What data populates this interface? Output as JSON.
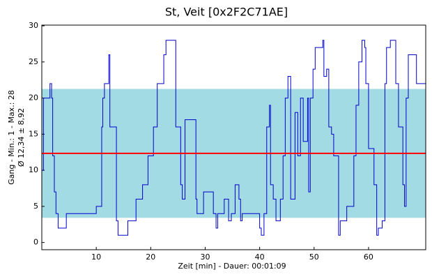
{
  "chart_data": {
    "type": "line",
    "step": true,
    "title": "St, Veit [0x2F2C71AE]",
    "x_label": "Zeit [min] - Dauer: 00:01:09",
    "y_label": [
      "Gang - Min.: 1 - Max.: 28",
      "Ø 12,34 ± 8,92"
    ],
    "xlim": [
      0,
      70.5
    ],
    "ylim": [
      -1,
      30.1
    ],
    "xticks": [
      10,
      20,
      30,
      40,
      50,
      60
    ],
    "yticks": [
      0,
      5,
      10,
      15,
      20,
      25,
      30
    ],
    "color": "#0000cc",
    "mean_color": "#ff0000",
    "band_color": "#a3dbe4",
    "mean": 12.34,
    "band": [
      3.42,
      21.26
    ],
    "x": [
      0,
      0.3,
      1.5,
      1.8,
      2,
      2.3,
      2.6,
      3,
      4.5,
      10,
      11,
      11.2,
      11.5,
      12.3,
      12.5,
      13.7,
      14,
      15.8,
      17.3,
      18.5,
      19.5,
      20.5,
      21.2,
      22.4,
      22.8,
      24.6,
      25.5,
      25.8,
      26.3,
      28.3,
      28.5,
      29.7,
      31.5,
      32,
      32.3,
      33.5,
      34.3,
      34.8,
      35.5,
      36.2,
      36.5,
      36.8,
      40,
      40.3,
      40.8,
      41.3,
      41.8,
      42,
      42.5,
      43,
      43.8,
      44.3,
      44.7,
      45.2,
      45.7,
      46.5,
      47,
      47.5,
      48,
      48.8,
      49,
      49.3,
      49.8,
      50.2,
      51.6,
      51.8,
      52.3,
      52.7,
      53.2,
      53.6,
      54.5,
      54.8,
      56,
      57.3,
      57.7,
      58.2,
      58.8,
      59.3,
      59.5,
      60,
      61,
      61.5,
      61.8,
      62.5,
      63,
      63.3,
      64,
      65,
      65.5,
      66.3,
      66.6,
      66.9,
      67.3,
      68.8,
      70.5
    ],
    "values": [
      10,
      20,
      22,
      20,
      12,
      7,
      4,
      2,
      4,
      5,
      16,
      20,
      22,
      26,
      16,
      3,
      1,
      3,
      6,
      8,
      12,
      16,
      22,
      26,
      28,
      16,
      8,
      6,
      17,
      6,
      4,
      7,
      4,
      2,
      4,
      6,
      3,
      4,
      8,
      6,
      3,
      4,
      2,
      1,
      4,
      16,
      19,
      8,
      6,
      3,
      6,
      12,
      20,
      23,
      6,
      18,
      12,
      20,
      14,
      20,
      7,
      20,
      24,
      27,
      28,
      23,
      24,
      16,
      15,
      12,
      1,
      3,
      5,
      12,
      19,
      25,
      28,
      27,
      22,
      13,
      8,
      1,
      2,
      3,
      22,
      27,
      28,
      22,
      16,
      8,
      5,
      20,
      26,
      22,
      22
    ]
  }
}
